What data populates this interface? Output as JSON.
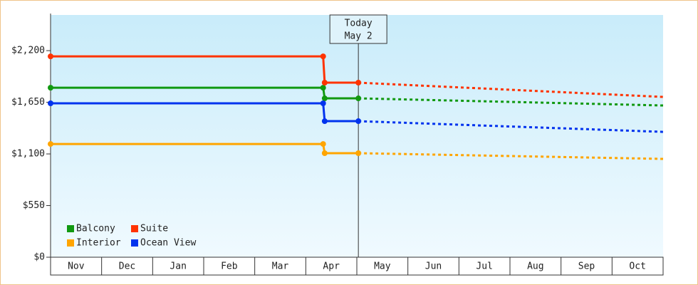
{
  "chart_data": {
    "type": "line",
    "x": [
      0,
      5.34,
      5.37,
      6.03,
      12
    ],
    "xlim": [
      0,
      12
    ],
    "xticks": [
      {
        "value": 0.5,
        "label": "Nov"
      },
      {
        "value": 1.5,
        "label": "Dec"
      },
      {
        "value": 2.5,
        "label": "Jan"
      },
      {
        "value": 3.5,
        "label": "Feb"
      },
      {
        "value": 4.5,
        "label": "Mar"
      },
      {
        "value": 5.5,
        "label": "Apr"
      },
      {
        "value": 6.5,
        "label": "May"
      },
      {
        "value": 7.5,
        "label": "Jun"
      },
      {
        "value": 8.5,
        "label": "Jul"
      },
      {
        "value": 9.5,
        "label": "Aug"
      },
      {
        "value": 10.5,
        "label": "Sep"
      },
      {
        "value": 11.5,
        "label": "Oct"
      }
    ],
    "ylim": [
      0,
      2580
    ],
    "yticks": [
      {
        "value": 0,
        "label": "$0"
      },
      {
        "value": 550,
        "label": "$550"
      },
      {
        "value": 1100,
        "label": "$1,100"
      },
      {
        "value": 1650,
        "label": "$1,650"
      },
      {
        "value": 2200,
        "label": "$2,200"
      }
    ],
    "series": [
      {
        "name": "Balcony",
        "color": "#119911",
        "values": [
          1805,
          1805,
          1692,
          1692,
          1616
        ]
      },
      {
        "name": "Suite",
        "color": "#ff3300",
        "values": [
          2139,
          2139,
          1859,
          1859,
          1707
        ]
      },
      {
        "name": "Interior",
        "color": "#ffa500",
        "values": [
          1206,
          1206,
          1108,
          1108,
          1047
        ]
      },
      {
        "name": "Ocean View",
        "color": "#0033ee",
        "values": [
          1639,
          1639,
          1449,
          1449,
          1335
        ]
      }
    ],
    "annotation": {
      "x": 6.03,
      "lines": [
        "Today",
        "May 2"
      ]
    },
    "legend": "lower left"
  }
}
